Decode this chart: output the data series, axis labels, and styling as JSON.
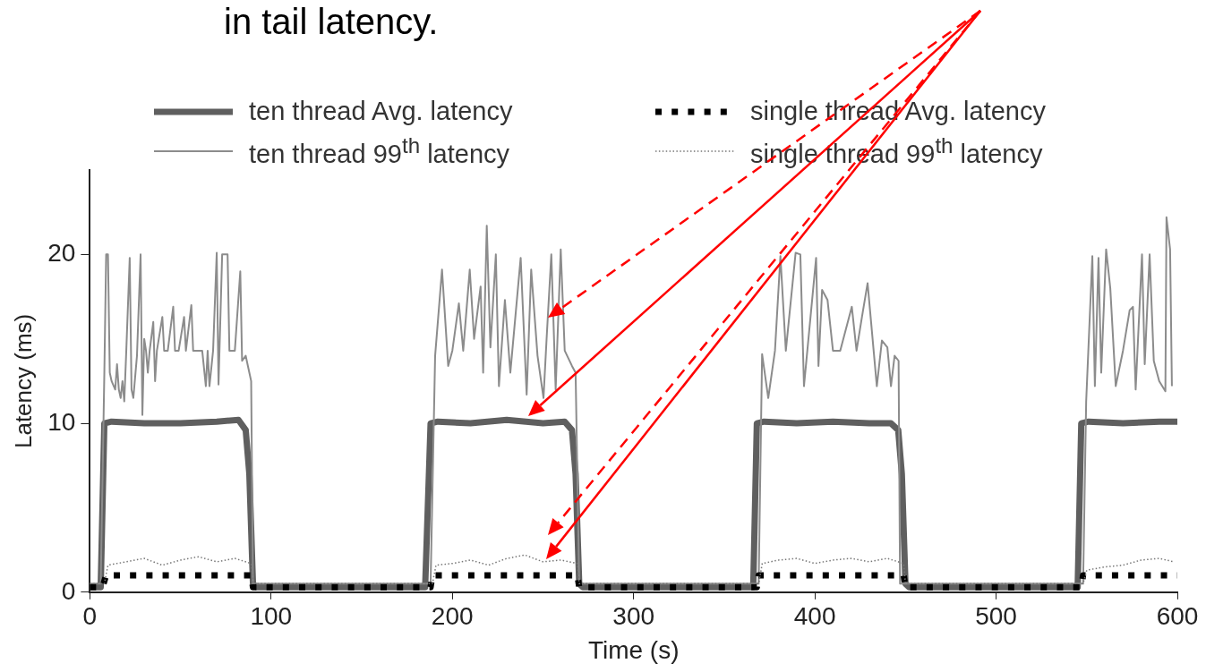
{
  "chart_data": {
    "type": "line",
    "xlabel": "Time (s)",
    "ylabel": "Latency (ms)",
    "xlim": [
      0,
      600
    ],
    "xticks": [
      0,
      100,
      200,
      300,
      400,
      500,
      600
    ],
    "ylim": [
      0,
      25
    ],
    "yticks": [
      0,
      10,
      20
    ],
    "grid": false,
    "legend": "top",
    "marker": "none",
    "annotations": [
      "in tail latency."
    ],
    "series": [
      {
        "name": "ten thread Avg. latency",
        "color": "#5f5f5f",
        "line_style": "solid",
        "x": [
          0,
          6,
          8,
          12,
          30,
          50,
          70,
          82,
          86,
          88,
          90,
          92,
          185,
          188,
          192,
          210,
          230,
          250,
          262,
          266,
          268,
          270,
          272,
          366,
          368,
          372,
          390,
          410,
          430,
          442,
          446,
          448,
          450,
          452,
          545,
          547,
          551,
          570,
          590,
          600
        ],
        "values": [
          0.3,
          0.3,
          10,
          10.1,
          10,
          10,
          10.1,
          10.2,
          9.6,
          7,
          0.5,
          0.3,
          0.3,
          10,
          10.1,
          10,
          10.2,
          10,
          10.1,
          9.6,
          7,
          0.5,
          0.3,
          0.3,
          10,
          10.1,
          10,
          10.1,
          10,
          10,
          9.6,
          7,
          0.5,
          0.3,
          0.3,
          10,
          10.1,
          10,
          10.1,
          10.1
        ]
      },
      {
        "name": "ten thread 99$^{th}$ latency",
        "color": "#8c8c8c",
        "line_style": "solid",
        "x": [
          0,
          6,
          8,
          9,
          10,
          11,
          12,
          14,
          15,
          16,
          17,
          18,
          19,
          20,
          22,
          23,
          24,
          26,
          28,
          29,
          30,
          31,
          32,
          33,
          35,
          36,
          37,
          40,
          41,
          43,
          46,
          47,
          49,
          52,
          53,
          56,
          57,
          62,
          64,
          65,
          66,
          68,
          70,
          71,
          73,
          76,
          77,
          80,
          83,
          84,
          86,
          88,
          89,
          90,
          188,
          190.5,
          194.3,
          197.7,
          200,
          203.6,
          206,
          209.6,
          212,
          215.6,
          217,
          219,
          221,
          224,
          225.7,
          229,
          232,
          237.7,
          241,
          243.5,
          247,
          250.3,
          252,
          254.6,
          257,
          259.8,
          262,
          266,
          268,
          270,
          369,
          370.9,
          374.3,
          378,
          381,
          384,
          389.4,
          392,
          394,
          400.7,
          402,
          404,
          407,
          410,
          414,
          420.4,
          423,
          426,
          429.1,
          434.2,
          437,
          440,
          442,
          444,
          446.2,
          447,
          548,
          549.7,
          553.1,
          554.5,
          556.5,
          558,
          560.7,
          563,
          566,
          570,
          573.7,
          575.5,
          577,
          580.5,
          582,
          584.7,
          587,
          590,
          593.4,
          594,
          596,
          597
        ],
        "values": [
          0.5,
          0.5,
          13,
          20,
          20,
          13,
          12.5,
          12,
          13.5,
          12,
          11.5,
          12.5,
          11.3,
          14,
          19.8,
          12,
          11.5,
          14,
          20,
          10.5,
          15,
          14.3,
          13,
          14.3,
          16,
          12.5,
          14.3,
          16.3,
          14.3,
          14.3,
          16.9,
          14.3,
          14.3,
          16.3,
          14.3,
          17,
          14.3,
          14.3,
          12.2,
          14.3,
          12.2,
          14.3,
          20.1,
          12.3,
          20,
          20,
          14.3,
          14.3,
          19,
          13.7,
          14,
          13,
          12.5,
          0.5,
          0.5,
          14,
          19.1,
          13.4,
          14.3,
          17.1,
          14.3,
          19.1,
          15,
          18.1,
          13,
          21.7,
          14.5,
          20,
          12.2,
          17.3,
          13,
          19.8,
          11.7,
          19.1,
          14,
          11.5,
          15,
          20,
          12,
          20.3,
          14.3,
          13.4,
          13,
          0.5,
          0.5,
          14.1,
          11.5,
          14.3,
          19.9,
          14.3,
          20.1,
          20,
          12.2,
          19.8,
          13.4,
          17.9,
          17.3,
          14.3,
          14.3,
          16.9,
          14.3,
          16.3,
          18.3,
          12.2,
          14.9,
          14.5,
          12.2,
          14,
          13.7,
          0.5,
          0.5,
          11.3,
          19.9,
          12.2,
          19.8,
          13,
          20.3,
          18,
          12.2,
          14.3,
          16.7,
          16.9,
          12,
          20,
          13.5,
          20,
          13.7,
          12.5,
          11.9,
          22.2,
          20.3,
          12.2
        ]
      },
      {
        "name": "single thread Avg. latency",
        "color": "#000000",
        "line_style": "dotted",
        "x": [
          0,
          7,
          9,
          89,
          90,
          188,
          189,
          269,
          270,
          368,
          369,
          449,
          450,
          547,
          548,
          600
        ],
        "values": [
          0.3,
          0.3,
          1,
          1,
          0.3,
          0.3,
          1,
          1,
          0.3,
          0.3,
          1,
          1,
          0.3,
          0.3,
          1,
          1
        ]
      },
      {
        "name": "single thread 99$^{th}$ latency",
        "color": "#777777",
        "line_style": "dotted",
        "x": [
          0,
          8,
          10,
          20,
          30,
          40,
          50,
          60,
          70,
          80,
          89,
          90,
          189,
          191,
          200,
          210,
          220,
          230,
          240,
          250,
          260,
          269,
          270,
          369,
          371,
          380,
          390,
          400,
          410,
          420,
          430,
          440,
          449,
          450,
          548,
          550,
          560,
          570,
          580,
          590,
          598
        ],
        "values": [
          0.5,
          0.5,
          1.6,
          1.8,
          2,
          1.6,
          1.9,
          2.1,
          1.8,
          2,
          1.7,
          0.5,
          0.5,
          1.6,
          1.7,
          1.9,
          1.6,
          2,
          2.2,
          1.8,
          1.9,
          1.7,
          0.5,
          0.5,
          1.7,
          1.9,
          2,
          1.7,
          1.9,
          2,
          1.8,
          2,
          1.7,
          0.5,
          0.5,
          1.3,
          1.5,
          1.6,
          1.9,
          2,
          1.8
        ]
      }
    ]
  }
}
